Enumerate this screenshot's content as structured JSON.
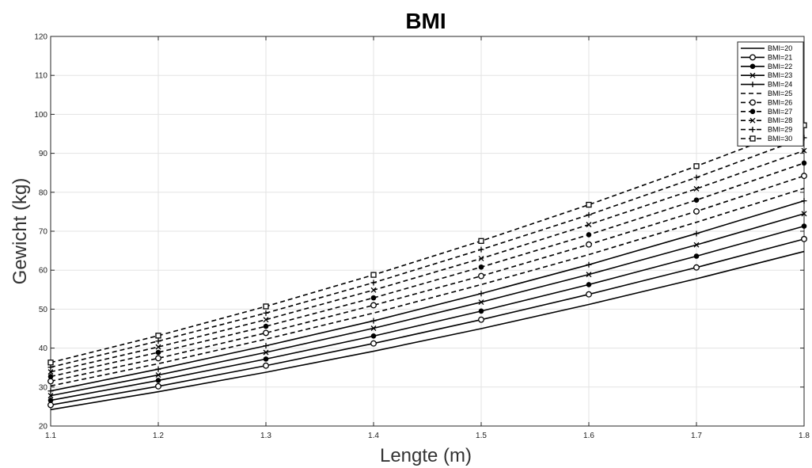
{
  "chart_data": {
    "type": "line",
    "title": "BMI",
    "xlabel": "Lengte (m)",
    "ylabel": "Gewicht (kg)",
    "xlim": [
      1.1,
      1.8
    ],
    "ylim": [
      20,
      120
    ],
    "xticks": [
      "1.1",
      "1.2",
      "1.3",
      "1.4",
      "1.5",
      "1.6",
      "1.7",
      "1.8"
    ],
    "yticks": [
      "20",
      "30",
      "40",
      "50",
      "60",
      "70",
      "80",
      "90",
      "100",
      "110",
      "120"
    ],
    "grid": true,
    "legend_position": "top-right",
    "x": [
      1.1,
      1.2,
      1.3,
      1.4,
      1.5,
      1.6,
      1.7,
      1.8
    ],
    "series": [
      {
        "name": "BMI=20",
        "line": "solid",
        "marker": "none",
        "values": [
          24.2,
          28.8,
          33.8,
          39.2,
          45.0,
          51.2,
          57.8,
          64.8
        ]
      },
      {
        "name": "BMI=21",
        "line": "solid",
        "marker": "circle-open",
        "values": [
          25.4,
          30.2,
          35.5,
          41.2,
          47.3,
          53.8,
          60.7,
          68.0
        ]
      },
      {
        "name": "BMI=22",
        "line": "solid",
        "marker": "circle-filled",
        "values": [
          26.6,
          31.7,
          37.2,
          43.1,
          49.5,
          56.3,
          63.6,
          71.3
        ]
      },
      {
        "name": "BMI=23",
        "line": "solid",
        "marker": "x",
        "values": [
          27.8,
          33.1,
          38.9,
          45.1,
          51.8,
          58.9,
          66.5,
          74.5
        ]
      },
      {
        "name": "BMI=24",
        "line": "solid",
        "marker": "plus",
        "values": [
          29.0,
          34.6,
          40.6,
          47.0,
          54.0,
          61.4,
          69.4,
          77.8
        ]
      },
      {
        "name": "BMI=25",
        "line": "dashed",
        "marker": "none",
        "values": [
          30.3,
          36.0,
          42.3,
          49.0,
          56.3,
          64.0,
          72.3,
          81.0
        ]
      },
      {
        "name": "BMI=26",
        "line": "dashed",
        "marker": "circle-open",
        "values": [
          31.5,
          37.4,
          43.9,
          51.0,
          58.5,
          66.6,
          75.1,
          84.2
        ]
      },
      {
        "name": "BMI=27",
        "line": "dashed",
        "marker": "circle-filled",
        "values": [
          32.7,
          38.9,
          45.6,
          52.9,
          60.8,
          69.1,
          78.0,
          87.5
        ]
      },
      {
        "name": "BMI=28",
        "line": "dashed",
        "marker": "x",
        "values": [
          33.9,
          40.3,
          47.3,
          54.9,
          63.0,
          71.7,
          80.9,
          90.7
        ]
      },
      {
        "name": "BMI=29",
        "line": "dashed",
        "marker": "plus",
        "values": [
          35.1,
          41.8,
          49.0,
          56.8,
          65.3,
          74.2,
          83.8,
          94.0
        ]
      },
      {
        "name": "BMI=30",
        "line": "dashed",
        "marker": "square-open",
        "values": [
          36.3,
          43.2,
          50.7,
          58.8,
          67.5,
          76.8,
          86.7,
          97.2
        ]
      }
    ]
  }
}
